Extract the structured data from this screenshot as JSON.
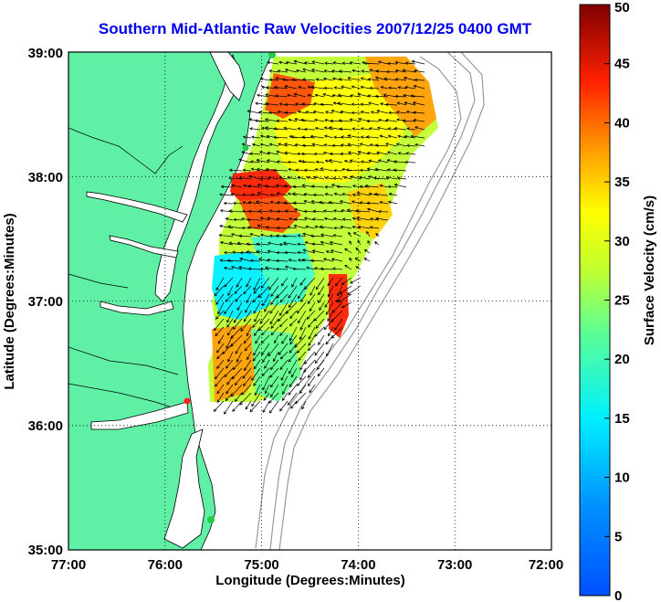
{
  "title": "Southern Mid-Atlantic Raw Velocities 2007/12/25 0400 GMT",
  "map": {
    "xlabel": "Longitude (Degrees:Minutes)",
    "ylabel": "Latitude (Degrees:Minutes)",
    "x_ticks": [
      "77:00",
      "76:00",
      "75:00",
      "74:00",
      "73:00",
      "72:00"
    ],
    "y_ticks": [
      "39:00",
      "38:00",
      "37:00",
      "36:00",
      "35:00"
    ],
    "lon_range": [
      -77,
      -72
    ],
    "lat_range": [
      35,
      39
    ],
    "grid": "dotted",
    "land_color": "#5ff0a6",
    "water_color": "#ffffff"
  },
  "colorbar": {
    "label": "Surface Velocity (cm/s)",
    "ticks": [
      "50",
      "45",
      "40",
      "35",
      "30",
      "25",
      "20",
      "15",
      "10",
      "5",
      "0"
    ],
    "range": [
      0,
      50
    ],
    "colormap": "jet"
  },
  "colors": {
    "title": "#0000ee",
    "station": "#22cc44",
    "station_alt": "#ff2222"
  }
}
